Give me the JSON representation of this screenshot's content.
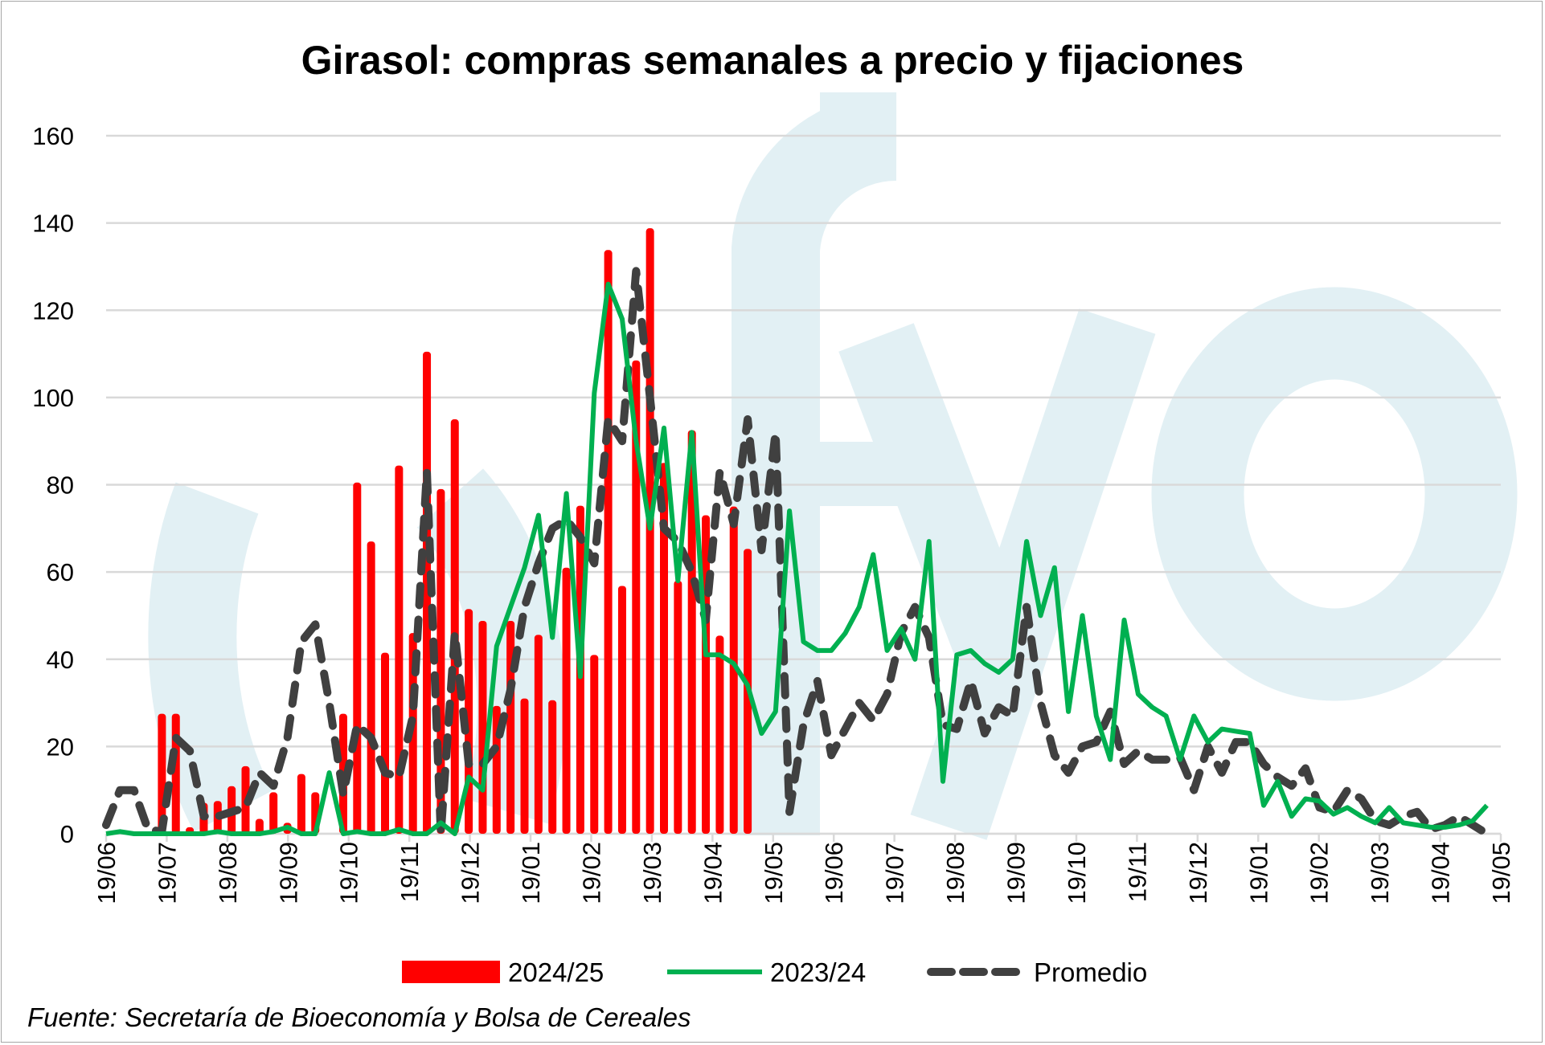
{
  "chart_data": {
    "type": "bar+line",
    "title": "Girasol: compras semanales a precio y fijaciones",
    "source": "Fuente: Secretaría de Bioeconomía y Bolsa de Cereales",
    "watermark": "fyo",
    "xlabel": "",
    "ylabel": "",
    "ylim": [
      0,
      160
    ],
    "yticks": [
      0,
      20,
      40,
      60,
      80,
      100,
      120,
      140,
      160
    ],
    "ytick_labels": [
      "0",
      "20",
      "40",
      "60",
      "80",
      "100",
      "120",
      "140",
      "160"
    ],
    "x_unit": "week index from first 19/06",
    "xlim": [
      0,
      100
    ],
    "xtick_labels": [
      "19/06",
      "19/07",
      "19/08",
      "19/09",
      "19/10",
      "19/11",
      "19/12",
      "19/01",
      "19/02",
      "19/03",
      "19/04",
      "19/05",
      "19/06",
      "19/07",
      "19/08",
      "19/09",
      "19/10",
      "19/11",
      "19/12",
      "19/01",
      "19/02",
      "19/03",
      "19/04",
      "19/05"
    ],
    "grid": true,
    "legend_position": "bottom",
    "series": [
      {
        "name": "2024/25",
        "type": "bar",
        "color": "#ff0000",
        "start_week": 4,
        "values": [
          27.5,
          27.5,
          1.5,
          7.1,
          7.5,
          10.9,
          15.5,
          3.4,
          9.5,
          2.5,
          13.7,
          9.5,
          0,
          27.5,
          80.5,
          67,
          41.5,
          84.4,
          46,
          110.5,
          79,
          95,
          51.5,
          48.8,
          29.3,
          48.8,
          31,
          45.6,
          30.6,
          61,
          75.2,
          41,
          133.8,
          56.8,
          108.5,
          138.8,
          85,
          58,
          92.5,
          73,
          45.4,
          75,
          65.3
        ]
      },
      {
        "name": "2023/24",
        "type": "line",
        "color": "#00b050",
        "start_week": 0,
        "values": [
          0,
          0.5,
          0,
          0,
          0,
          0,
          0,
          0,
          0.5,
          0,
          0,
          0,
          0.5,
          1.5,
          0,
          0,
          14,
          0,
          0.5,
          0,
          0,
          1,
          0,
          0,
          2.5,
          0,
          13,
          10,
          43,
          52,
          61,
          73,
          45,
          78,
          36,
          101,
          126,
          118,
          90,
          70,
          93,
          58,
          92,
          41,
          41,
          39,
          34,
          23,
          28,
          74,
          44,
          42,
          42,
          46,
          52,
          64,
          42,
          47,
          40,
          67,
          12,
          41,
          42,
          39,
          37,
          40,
          67,
          50,
          61,
          28,
          50,
          27,
          17,
          49,
          32,
          29,
          27,
          17,
          27,
          21,
          24,
          23.5,
          23,
          6.5,
          12,
          4,
          8,
          7.5,
          4.5,
          6,
          4,
          2.5,
          6,
          2.5,
          2,
          1.5,
          1.5,
          2,
          3,
          6.5
        ]
      },
      {
        "name": "Promedio",
        "type": "line-dashed",
        "color": "#404040",
        "start_week": 0,
        "values": [
          2,
          10,
          10,
          1,
          0.5,
          22,
          19,
          4,
          4,
          5,
          6,
          14,
          11,
          22,
          44,
          48,
          30,
          9,
          25,
          22,
          14,
          13,
          27,
          83,
          0,
          46,
          16,
          16,
          20,
          33,
          52,
          62,
          70,
          72,
          68,
          62,
          95,
          90,
          129,
          100,
          70,
          67,
          60,
          49,
          83,
          71,
          95,
          65,
          92,
          5,
          25,
          35,
          18,
          24,
          30,
          26,
          32,
          46,
          52,
          45,
          25,
          24,
          35,
          23,
          29,
          27,
          52,
          30,
          18,
          14,
          20,
          21,
          28,
          16,
          19,
          17,
          17,
          17.5,
          10,
          20,
          14,
          21,
          21,
          16,
          13,
          11,
          15,
          6,
          5,
          10,
          8,
          3,
          2,
          4,
          5,
          1,
          2,
          4,
          2,
          0
        ]
      }
    ]
  }
}
